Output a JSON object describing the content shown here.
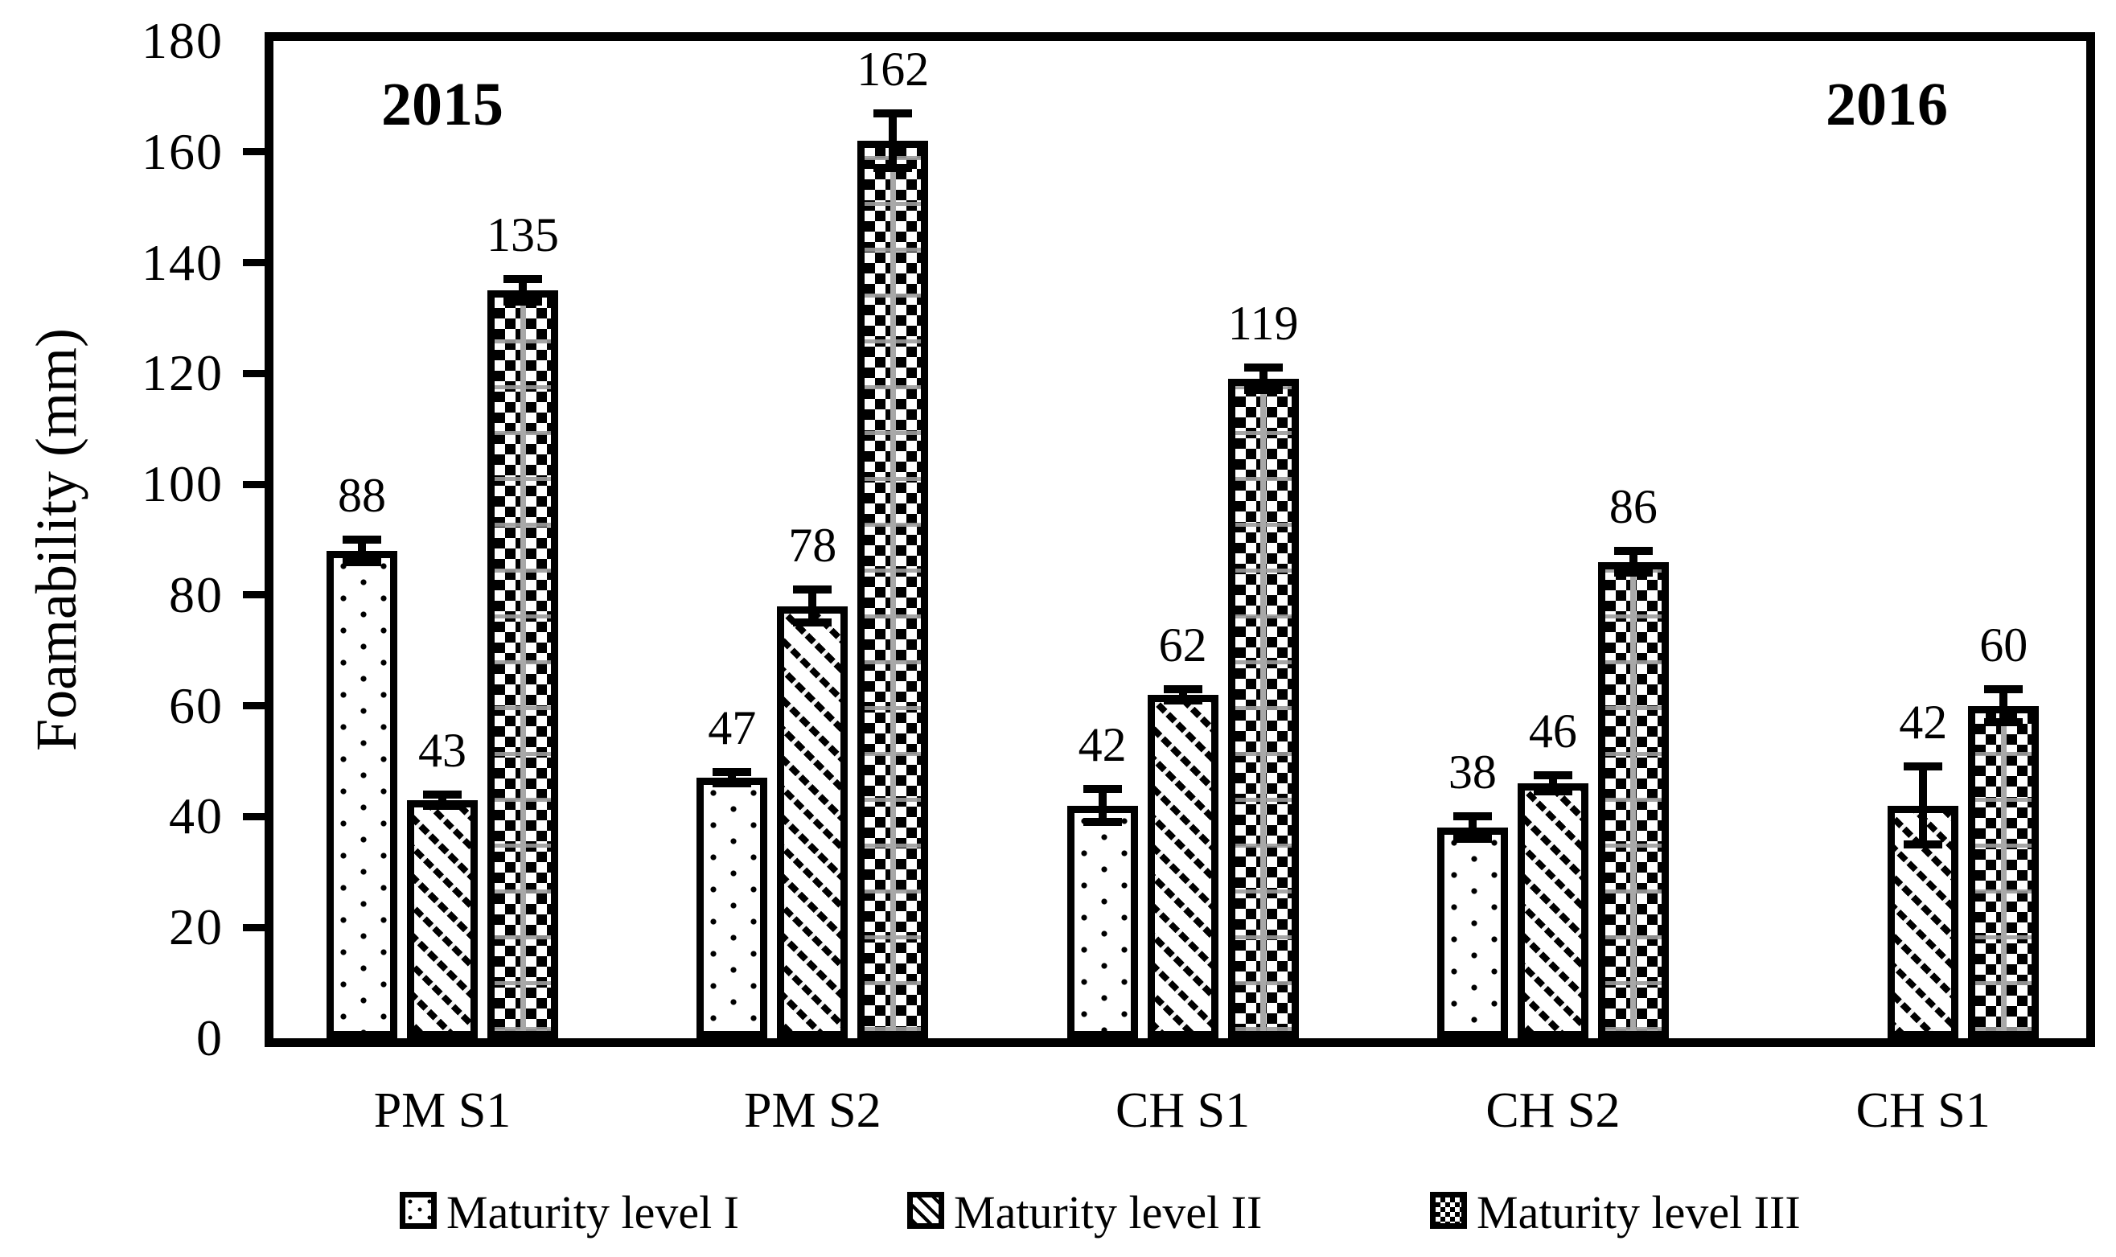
{
  "y_axis": {
    "label": "Foamability (mm)",
    "min": 0,
    "max": 180,
    "tick_step": 20,
    "tick_labels": [
      "0",
      "20",
      "40",
      "60",
      "80",
      "100",
      "120",
      "140",
      "160",
      "180"
    ]
  },
  "annotations": {
    "year_left": "2015",
    "year_right": "2016"
  },
  "legend": {
    "items": [
      {
        "label": "Maturity level I",
        "pattern": "dots"
      },
      {
        "label": "Maturity level II",
        "pattern": "diagonal"
      },
      {
        "label": "Maturity level III",
        "pattern": "check"
      }
    ]
  },
  "chart_data": {
    "type": "bar",
    "title": "",
    "xlabel": "",
    "ylabel": "Foamability (mm)",
    "ylim": [
      0,
      180
    ],
    "ytick_step": 20,
    "grid": false,
    "legend_position": "bottom",
    "error_bars": true,
    "data_labels": true,
    "categories": [
      "PM S1",
      "PM S2",
      "CH S1",
      "CH S2",
      "CH S1"
    ],
    "category_year_groups": [
      {
        "year": "2015",
        "categories": [
          "PM S1",
          "PM S2",
          "CH S1",
          "CH S2"
        ]
      },
      {
        "year": "2016",
        "categories": [
          "CH S1"
        ]
      }
    ],
    "series": [
      {
        "name": "Maturity level I",
        "pattern": "dots",
        "values": [
          88,
          47,
          42,
          38,
          null
        ],
        "errors": [
          2,
          1,
          3,
          2,
          null
        ]
      },
      {
        "name": "Maturity level II",
        "pattern": "diagonal",
        "values": [
          43,
          78,
          62,
          46,
          42
        ],
        "errors": [
          1,
          3,
          1,
          1.5,
          7
        ]
      },
      {
        "name": "Maturity level III",
        "pattern": "check",
        "values": [
          135,
          162,
          119,
          86,
          60
        ],
        "errors": [
          2,
          5,
          2,
          2,
          3
        ]
      }
    ],
    "colors": {
      "bar_fill": "#ffffff",
      "bar_border": "#000000",
      "text": "#000000",
      "check_gray": "#a8a8a8"
    }
  }
}
